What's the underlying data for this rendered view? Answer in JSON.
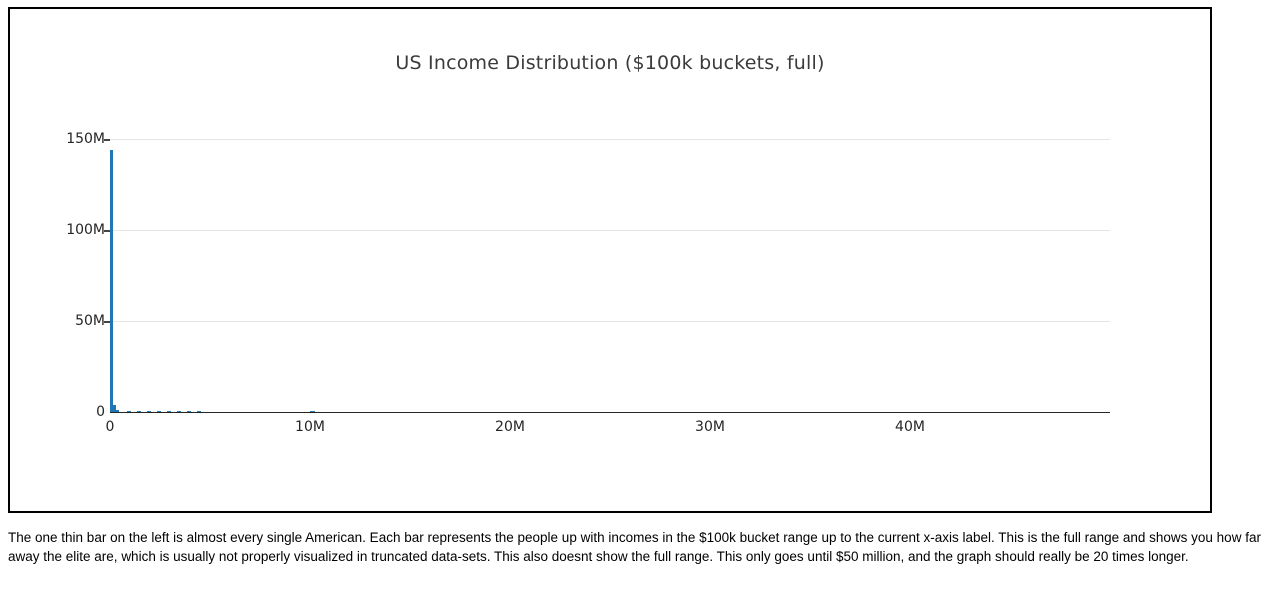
{
  "chart": {
    "colors": {
      "bar": "#1f77b4",
      "gridline": "#e5e5e5",
      "axis": "#262626",
      "tick_mark": "#444444",
      "title_text": "#3b3b3b",
      "tick_text": "#262626",
      "figure_border": "#000000",
      "background": "#ffffff"
    }
  },
  "chart_data": {
    "type": "bar",
    "title": "US Income Distribution ($100k buckets, full)",
    "xlabel": "",
    "ylabel": "",
    "x_unit": "income ($, millions)",
    "y_unit": "people (millions)",
    "xlim_m": [
      0,
      50
    ],
    "ylim_m": [
      0,
      150
    ],
    "grid": "horizontal-only",
    "legend_position": "none",
    "x_ticks": [
      {
        "value_m": 0,
        "label": "0"
      },
      {
        "value_m": 10,
        "label": "10M"
      },
      {
        "value_m": 20,
        "label": "20M"
      },
      {
        "value_m": 30,
        "label": "30M"
      },
      {
        "value_m": 40,
        "label": "40M"
      }
    ],
    "y_ticks": [
      {
        "value_m": 0,
        "label": "0"
      },
      {
        "value_m": 50,
        "label": "50M"
      },
      {
        "value_m": 100,
        "label": "100M"
      },
      {
        "value_m": 150,
        "label": "150M"
      }
    ],
    "bars": [
      {
        "x_m": 0.0,
        "width_m": 0.17,
        "people_m": 144.0
      },
      {
        "x_m": 0.17,
        "width_m": 0.15,
        "people_m": 3.8
      },
      {
        "x_m": 0.32,
        "width_m": 0.15,
        "people_m": 1.1
      },
      {
        "x_m": 0.85,
        "width_m": 0.2,
        "people_m": 0.8
      },
      {
        "x_m": 1.35,
        "width_m": 0.2,
        "people_m": 0.8
      },
      {
        "x_m": 1.85,
        "width_m": 0.2,
        "people_m": 0.8
      },
      {
        "x_m": 2.35,
        "width_m": 0.2,
        "people_m": 0.8
      },
      {
        "x_m": 2.85,
        "width_m": 0.2,
        "people_m": 0.8
      },
      {
        "x_m": 3.35,
        "width_m": 0.2,
        "people_m": 0.8
      },
      {
        "x_m": 3.85,
        "width_m": 0.2,
        "people_m": 0.8
      },
      {
        "x_m": 4.35,
        "width_m": 0.2,
        "people_m": 0.8
      },
      {
        "x_m": 10.0,
        "width_m": 0.25,
        "people_m": 0.8
      }
    ]
  },
  "caption": {
    "text": "The one thin bar on the left is almost every single American. Each bar represents the people up with incomes in the $100k bucket range up to the current x-axis label. This is the full range and shows you how far away the elite are, which is usually not properly visualized in truncated data-sets. This also doesnt show the full range. This only goes until $50 million, and the graph should really be 20 times longer."
  }
}
